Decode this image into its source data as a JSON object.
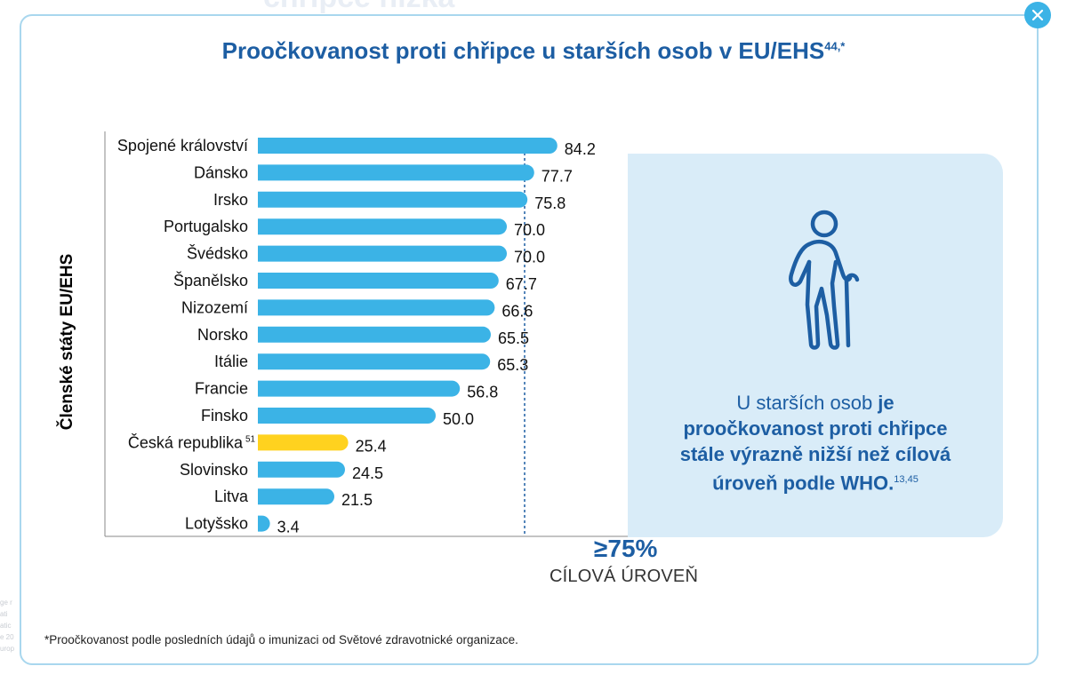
{
  "background": {
    "title_fragment": "chřipce nízká",
    "side_fragments": [
      "ge r",
      "ati",
      "atic",
      "e 20",
      "urop"
    ]
  },
  "close_icon": "close-icon",
  "title": {
    "text": "Proočkovanost proti chřipce u starších osob v EU/EHS",
    "superscript": "44,*"
  },
  "chart_data": {
    "type": "bar",
    "orientation": "horizontal",
    "ylabel": "Členské státy EU/EHS",
    "categories": [
      "Spojené království",
      "Dánsko",
      "Irsko",
      "Portugalsko",
      "Švédsko",
      "Španělsko",
      "Nizozemí",
      "Norsko",
      "Itálie",
      "Francie",
      "Finsko",
      "Česká republika",
      "Slovinsko",
      "Litva",
      "Lotyšsko"
    ],
    "category_superscripts": {
      "Česká republika": "51"
    },
    "values": [
      84.2,
      77.7,
      75.8,
      70.0,
      70.0,
      67.7,
      66.6,
      65.5,
      65.3,
      56.8,
      50.0,
      25.4,
      24.5,
      21.5,
      3.4
    ],
    "value_labels": [
      "84.2",
      "77.7",
      "75.8",
      "70.0",
      "70.0",
      "67.7",
      "66.6",
      "65.5",
      "65.3",
      "56.8",
      "50.0",
      "25.4",
      "24.5",
      "21.5",
      "3.4"
    ],
    "colors": {
      "default": "#3bb3e6",
      "highlight": "#ffd21f"
    },
    "highlight_index": 11,
    "target_line": {
      "value": 75,
      "label_value": "≥75%",
      "label_text": "CÍLOVÁ ÚROVEŇ",
      "color": "#1d5ea3"
    },
    "xlim": [
      0,
      100
    ]
  },
  "info": {
    "icon": "elderly-person-icon",
    "line1_regular": "U starších osob ",
    "line1_bold": "je",
    "line2": "proočkovanost proti chřipce",
    "line3": "stále výrazně nižší než cílová",
    "line4": "úroveň podle WHO.",
    "superscript": "13,45"
  },
  "footnote": "*Proočkovanost podle posledních údajů o imunizaci od Světové zdravotnické organizace."
}
